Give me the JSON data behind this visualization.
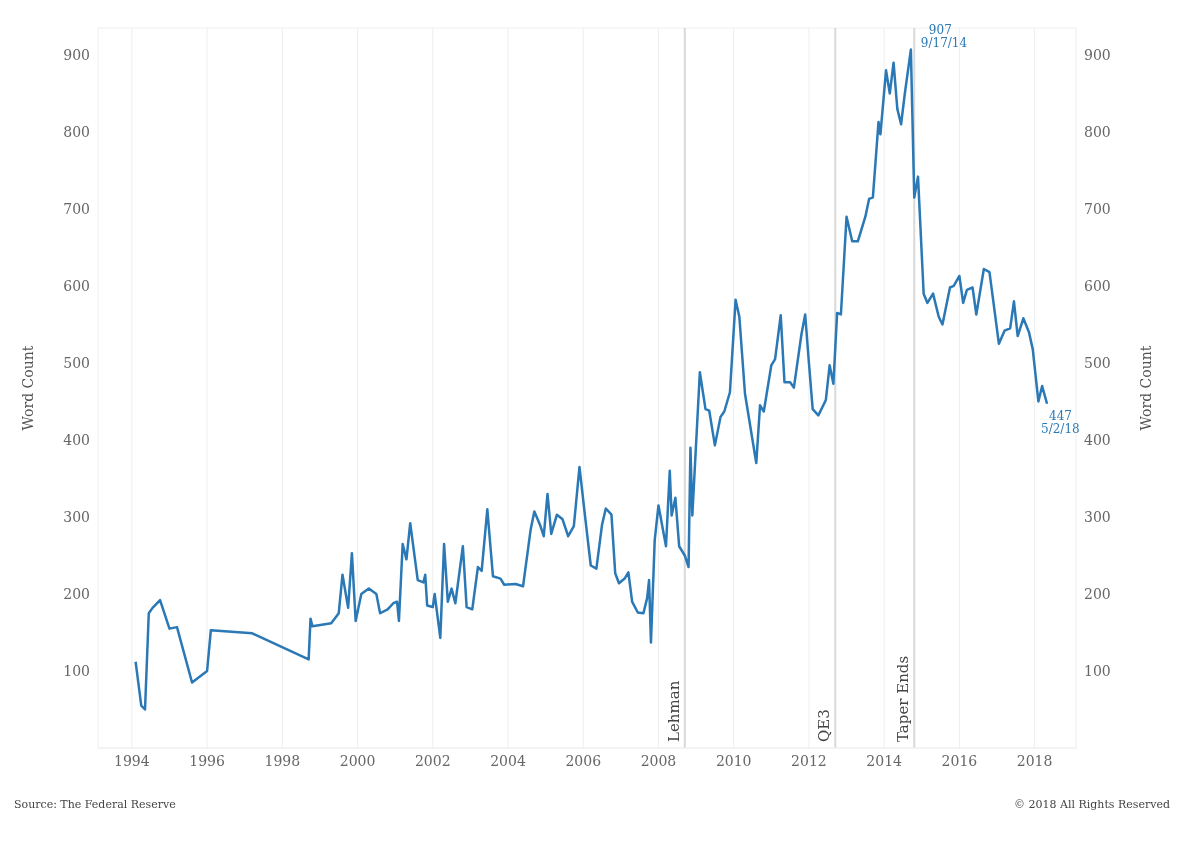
{
  "chart_data": {
    "type": "line",
    "ylabel": "Word Count",
    "y2label": "Word Count",
    "x": [
      1994.1,
      1994.25,
      1994.35,
      1994.45,
      1994.55,
      1994.75,
      1995.0,
      1995.2,
      1995.6,
      1996.0,
      1996.1,
      1997.2,
      1998.7,
      1998.75,
      1998.8,
      1999.3,
      1999.5,
      1999.6,
      1999.75,
      1999.85,
      1999.95,
      2000.1,
      2000.3,
      2000.5,
      2000.6,
      2000.8,
      2000.95,
      2001.05,
      2001.1,
      2001.2,
      2001.3,
      2001.4,
      2001.6,
      2001.75,
      2001.8,
      2001.85,
      2002.0,
      2002.05,
      2002.2,
      2002.3,
      2002.4,
      2002.5,
      2002.6,
      2002.8,
      2002.9,
      2003.05,
      2003.2,
      2003.3,
      2003.45,
      2003.6,
      2003.8,
      2003.9,
      2004.2,
      2004.4,
      2004.6,
      2004.7,
      2004.85,
      2004.95,
      2005.05,
      2005.15,
      2005.3,
      2005.45,
      2005.6,
      2005.75,
      2005.9,
      2006.05,
      2006.2,
      2006.35,
      2006.5,
      2006.6,
      2006.75,
      2006.85,
      2006.95,
      2007.1,
      2007.2,
      2007.3,
      2007.45,
      2007.6,
      2007.7,
      2007.75,
      2007.8,
      2007.9,
      2008.0,
      2008.2,
      2008.3,
      2008.35,
      2008.45,
      2008.55,
      2008.7,
      2008.8,
      2008.85,
      2008.9,
      2009.1,
      2009.25,
      2009.35,
      2009.5,
      2009.65,
      2009.75,
      2009.9,
      2010.05,
      2010.15,
      2010.3,
      2010.5,
      2010.6,
      2010.7,
      2010.8,
      2011.0,
      2011.1,
      2011.25,
      2011.35,
      2011.5,
      2011.6,
      2011.8,
      2011.9,
      2012.0,
      2012.1,
      2012.25,
      2012.45,
      2012.55,
      2012.65,
      2012.75,
      2012.85,
      2013.0,
      2013.15,
      2013.3,
      2013.5,
      2013.6,
      2013.7,
      2013.85,
      2013.9,
      2014.05,
      2014.15,
      2014.25,
      2014.35,
      2014.45,
      2014.55,
      2014.71,
      2014.8,
      2014.9,
      2015.05,
      2015.15,
      2015.3,
      2015.45,
      2015.55,
      2015.75,
      2015.85,
      2016.0,
      2016.1,
      2016.2,
      2016.35,
      2016.45,
      2016.65,
      2016.8,
      2017.05,
      2017.2,
      2017.35,
      2017.45,
      2017.55,
      2017.7,
      2017.85,
      2017.95,
      2018.1,
      2018.2,
      2018.33
    ],
    "series": [
      {
        "color": "#2a78b5",
        "values": [
          112,
          55,
          50,
          175,
          182,
          192,
          155,
          157,
          85,
          100,
          153,
          149,
          115,
          168,
          158,
          162,
          175,
          225,
          182,
          253,
          165,
          200,
          207,
          200,
          175,
          180,
          188,
          190,
          165,
          265,
          245,
          292,
          218,
          215,
          225,
          185,
          183,
          200,
          143,
          265,
          190,
          207,
          188,
          262,
          183,
          180,
          235,
          230,
          310,
          223,
          220,
          212,
          213,
          210,
          283,
          307,
          290,
          275,
          330,
          278,
          303,
          297,
          275,
          288,
          365,
          300,
          237,
          233,
          290,
          311,
          303,
          227,
          214,
          220,
          228,
          190,
          176,
          175,
          195,
          218,
          137,
          270,
          315,
          262,
          360,
          302,
          325,
          262,
          250,
          235,
          390,
          302,
          488,
          440,
          438,
          393,
          430,
          437,
          462,
          582,
          560,
          460,
          400,
          370,
          445,
          437,
          497,
          505,
          562,
          475,
          475,
          468,
          537,
          563,
          500,
          440,
          432,
          452,
          497,
          473,
          565,
          563,
          690,
          658,
          658,
          690,
          713,
          715,
          813,
          797,
          880,
          850,
          890,
          830,
          810,
          850,
          907,
          715,
          742,
          590,
          578,
          590,
          560,
          550,
          598,
          600,
          613,
          578,
          595,
          598,
          563,
          622,
          618,
          525,
          542,
          545,
          580,
          535,
          558,
          540,
          518,
          450,
          470,
          447
        ]
      }
    ],
    "xlim": [
      1993.1,
      2019.1
    ],
    "xticks": [
      1994,
      1996,
      1998,
      2000,
      2002,
      2004,
      2006,
      2008,
      2010,
      2012,
      2014,
      2016,
      2018
    ],
    "ylim": [
      0,
      935
    ],
    "yticks": [
      100,
      200,
      300,
      400,
      500,
      600,
      700,
      800,
      900
    ],
    "y2lim": [
      0,
      935
    ],
    "y2ticks": [
      100,
      200,
      300,
      400,
      500,
      600,
      700,
      800,
      900
    ],
    "grid": true,
    "marker": "none",
    "line_style": "solid",
    "ref_lines": [
      {
        "axis": "x",
        "value": 2008.7,
        "label": "Lehman",
        "color": "#d9d9d9"
      },
      {
        "axis": "x",
        "value": 2012.7,
        "label": "QE3",
        "color": "#d9d9d9"
      },
      {
        "axis": "x",
        "value": 2014.8,
        "label": "Taper Ends",
        "color": "#d9d9d9"
      }
    ],
    "annotations": [
      {
        "text": "907\n9/17/14",
        "x": 2014.71,
        "y": 907
      },
      {
        "text": "447\n5/2/18",
        "x": 2018.33,
        "y": 447
      },
      "Source: The Federal Reserve",
      "© 2018 All Rights Reserved"
    ]
  }
}
